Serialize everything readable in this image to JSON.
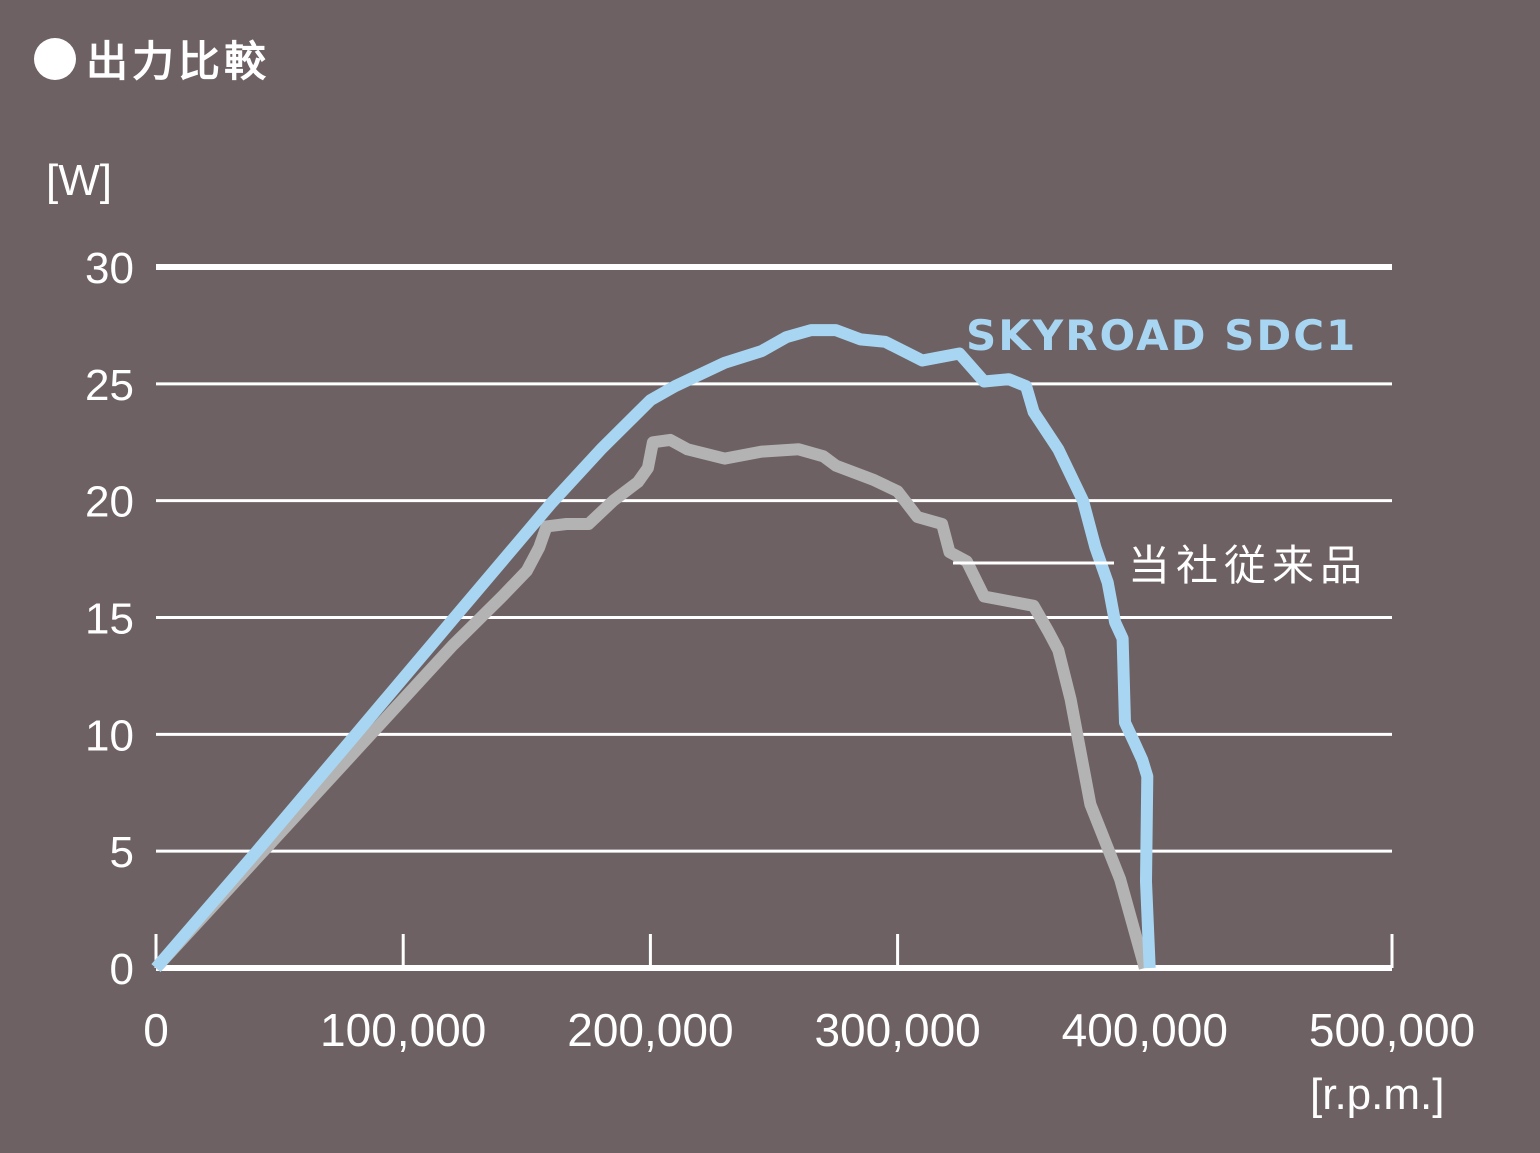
{
  "title": "出力比較",
  "colors": {
    "background": "#6d6163",
    "grid": "#ffffff",
    "skyroad": "#a8d6f2",
    "legacy": "#b3b3b3"
  },
  "chart_data": {
    "type": "line",
    "title": "出力比較",
    "xlabel": "[r.p.m.]",
    "ylabel": "[W]",
    "xlim": [
      0,
      500000
    ],
    "ylim": [
      0,
      30
    ],
    "x_ticks": [
      0,
      100000,
      200000,
      300000,
      400000,
      500000
    ],
    "x_tick_labels": [
      "0",
      "100,000",
      "200,000",
      "300,000",
      "400,000",
      "500,000"
    ],
    "y_ticks": [
      0,
      5,
      10,
      15,
      20,
      25,
      30
    ],
    "y_tick_labels": [
      "0",
      "5",
      "10",
      "15",
      "20",
      "25",
      "30"
    ],
    "grid": "horizontal",
    "legend_position": "inline-annotations",
    "series": [
      {
        "name": "SKYROAD SDC1",
        "color": "#a8d6f2",
        "points": [
          [
            0,
            0
          ],
          [
            40000,
            4.9
          ],
          [
            80000,
            9.9
          ],
          [
            120000,
            14.9
          ],
          [
            160000,
            19.9
          ],
          [
            180000,
            22.2
          ],
          [
            200000,
            24.3
          ],
          [
            210000,
            24.9
          ],
          [
            230000,
            25.9
          ],
          [
            245000,
            26.4
          ],
          [
            255000,
            27.0
          ],
          [
            265000,
            27.3
          ],
          [
            275000,
            27.3
          ],
          [
            285000,
            26.9
          ],
          [
            295000,
            26.8
          ],
          [
            310000,
            26.0
          ],
          [
            325000,
            26.3
          ],
          [
            335000,
            25.1
          ],
          [
            345000,
            25.2
          ],
          [
            352000,
            24.9
          ],
          [
            355000,
            23.8
          ],
          [
            365000,
            22.2
          ],
          [
            375000,
            20.0
          ],
          [
            380000,
            18.0
          ],
          [
            385000,
            16.5
          ],
          [
            388000,
            14.8
          ],
          [
            391000,
            14.1
          ],
          [
            392000,
            10.5
          ],
          [
            396000,
            9.6
          ],
          [
            399000,
            8.9
          ],
          [
            401000,
            8.2
          ],
          [
            400500,
            3.7
          ],
          [
            402000,
            0
          ]
        ]
      },
      {
        "name": "当社従来品",
        "color": "#b3b3b3",
        "points": [
          [
            0,
            0
          ],
          [
            40000,
            4.6
          ],
          [
            80000,
            9.2
          ],
          [
            120000,
            13.8
          ],
          [
            140000,
            15.9
          ],
          [
            150000,
            17.0
          ],
          [
            155000,
            18.0
          ],
          [
            158000,
            18.9
          ],
          [
            166000,
            19.0
          ],
          [
            175000,
            19.0
          ],
          [
            185000,
            20.0
          ],
          [
            195000,
            20.8
          ],
          [
            199000,
            21.4
          ],
          [
            201000,
            22.5
          ],
          [
            208000,
            22.6
          ],
          [
            215000,
            22.2
          ],
          [
            230000,
            21.8
          ],
          [
            245000,
            22.1
          ],
          [
            260000,
            22.2
          ],
          [
            270000,
            21.9
          ],
          [
            275000,
            21.5
          ],
          [
            290000,
            20.9
          ],
          [
            300000,
            20.4
          ],
          [
            308000,
            19.3
          ],
          [
            318000,
            19.0
          ],
          [
            321000,
            17.8
          ],
          [
            328000,
            17.4
          ],
          [
            335000,
            15.9
          ],
          [
            355000,
            15.5
          ],
          [
            361000,
            14.4
          ],
          [
            365000,
            13.6
          ],
          [
            370000,
            11.5
          ],
          [
            378000,
            7.0
          ],
          [
            390000,
            3.8
          ],
          [
            400000,
            0
          ]
        ]
      }
    ]
  },
  "labels": {
    "y_unit": "[W]",
    "x_unit": "[r.p.m.]",
    "skyroad": "SKYROAD SDC1",
    "legacy": "当社従来品"
  }
}
